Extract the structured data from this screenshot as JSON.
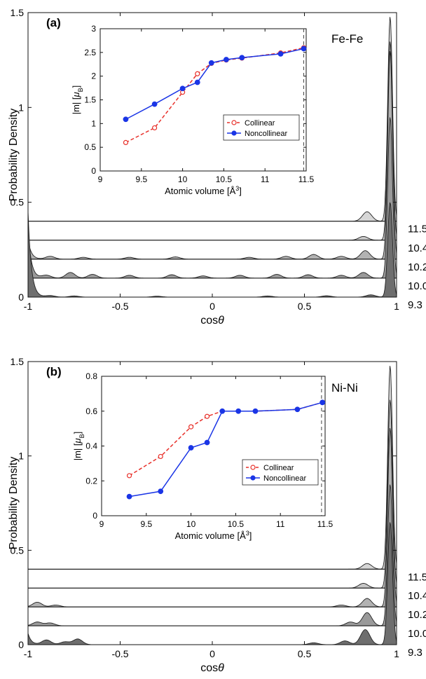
{
  "chart_data": [
    {
      "type": "area",
      "panel_label": "(a)",
      "annotation": "Fe-Fe",
      "xlabel": "cos",
      "xlabel_symbol": "θ",
      "ylabel": "Probability Density",
      "xlim": [
        -1,
        1
      ],
      "ylim": [
        0,
        1.5
      ],
      "xticks": [
        "-1",
        "-0.5",
        "0",
        "0.5",
        "1"
      ],
      "yticks": [
        "0",
        "0.5",
        "1",
        "1.5"
      ],
      "series": [
        {
          "name": "9.3",
          "offset": 0.0,
          "fill": "#6e6e6e",
          "left_peak": 0.45,
          "right_peak": 0.5,
          "bumps": [
            [
              -0.88,
              0.008
            ],
            [
              -0.75,
              0.006
            ],
            [
              -0.3,
              0.005
            ],
            [
              0.3,
              0.006
            ],
            [
              0.62,
              0.007
            ],
            [
              0.86,
              0.012
            ]
          ]
        },
        {
          "name": "10.0",
          "offset": 0.1,
          "fill": "#9a9a9a",
          "left_peak": 0.25,
          "right_peak": 0.85,
          "bumps": [
            [
              -0.9,
              0.015
            ],
            [
              -0.77,
              0.03
            ],
            [
              -0.65,
              0.02
            ],
            [
              -0.45,
              0.015
            ],
            [
              -0.22,
              0.018
            ],
            [
              -0.05,
              0.012
            ],
            [
              0.15,
              0.015
            ],
            [
              0.35,
              0.02
            ],
            [
              0.52,
              0.018
            ],
            [
              0.7,
              0.015
            ],
            [
              0.82,
              0.03
            ]
          ]
        },
        {
          "name": "10.2",
          "offset": 0.2,
          "fill": "#b2b2b2",
          "left_peak": 0.1,
          "right_peak": 1.1,
          "bumps": [
            [
              -0.88,
              0.015
            ],
            [
              -0.7,
              0.01
            ],
            [
              -0.45,
              0.01
            ],
            [
              -0.2,
              0.012
            ],
            [
              0.2,
              0.01
            ],
            [
              0.4,
              0.015
            ],
            [
              0.55,
              0.025
            ],
            [
              0.7,
              0.015
            ],
            [
              0.83,
              0.045
            ]
          ]
        },
        {
          "name": "10.4",
          "offset": 0.3,
          "fill": "#c6c6c6",
          "left_peak": 0.0,
          "right_peak": 1.05,
          "bumps": [
            [
              0.82,
              0.02
            ]
          ]
        },
        {
          "name": "11.5",
          "offset": 0.4,
          "fill": "#d6d6d6",
          "left_peak": 0.0,
          "right_peak": 1.08,
          "bumps": [
            [
              0.84,
              0.05
            ]
          ]
        }
      ],
      "inset": {
        "type": "line",
        "xlabel": "Atomic volume [",
        "xlabel_unit": "Å",
        "xlabel_exp": "3",
        "xlabel_close": "]",
        "ylabel": "|m| [",
        "ylabel_mu": "μ",
        "ylabel_sub": "B",
        "ylabel_close": "]",
        "xlim": [
          9,
          11.5
        ],
        "ylim": [
          0,
          3
        ],
        "xticks": [
          "9",
          "9.5",
          "10",
          "10.5",
          "11",
          "11.5"
        ],
        "yticks": [
          "0",
          "0.5",
          "1",
          "1.5",
          "2",
          "2.5",
          "3"
        ],
        "vline_x": 11.47,
        "legend_placement": "lower-right",
        "series": [
          {
            "name": "Collinear",
            "color": "#e8302a",
            "style": "dashed",
            "marker": "open-circle",
            "x": [
              9.31,
              9.66,
              10.0,
              10.18,
              10.35,
              10.53,
              10.72,
              11.19,
              11.47
            ],
            "y": [
              0.6,
              0.91,
              1.66,
              2.05,
              2.27,
              2.34,
              2.38,
              2.49,
              2.6
            ]
          },
          {
            "name": "Noncollinear",
            "color": "#1a35e6",
            "style": "solid",
            "marker": "filled-circle",
            "x": [
              9.31,
              9.66,
              10.0,
              10.18,
              10.35,
              10.53,
              10.72,
              11.19,
              11.47
            ],
            "y": [
              1.09,
              1.41,
              1.74,
              1.87,
              2.28,
              2.35,
              2.39,
              2.47,
              2.58
            ]
          }
        ]
      }
    },
    {
      "type": "area",
      "panel_label": "(b)",
      "annotation": "Ni-Ni",
      "xlabel": "cos",
      "xlabel_symbol": "θ",
      "ylabel": "Probability Density",
      "xlim": [
        -1,
        1
      ],
      "ylim": [
        0,
        1.5
      ],
      "xticks": [
        "-1",
        "-0.5",
        "0",
        "0.5",
        "1"
      ],
      "yticks": [
        "0",
        "0.5",
        "1",
        "1.5"
      ],
      "series": [
        {
          "name": "9.3",
          "offset": 0.0,
          "fill": "#6e6e6e",
          "left_peak": 0.06,
          "right_peak": 0.65,
          "bumps": [
            [
              -0.9,
              0.025
            ],
            [
              -0.8,
              0.015
            ],
            [
              -0.73,
              0.03
            ],
            [
              0.55,
              0.01
            ],
            [
              0.72,
              0.02
            ],
            [
              0.83,
              0.08
            ]
          ]
        },
        {
          "name": "10.0",
          "offset": 0.1,
          "fill": "#9a9a9a",
          "left_peak": 0.0,
          "right_peak": 0.75,
          "bumps": [
            [
              -0.95,
              0.02
            ],
            [
              -0.88,
              0.015
            ],
            [
              0.75,
              0.02
            ],
            [
              0.84,
              0.07
            ]
          ]
        },
        {
          "name": "10.2",
          "offset": 0.2,
          "fill": "#b2b2b2",
          "left_peak": 0.0,
          "right_peak": 0.95,
          "bumps": [
            [
              -0.95,
              0.025
            ],
            [
              -0.85,
              0.01
            ],
            [
              0.7,
              0.01
            ],
            [
              0.84,
              0.045
            ]
          ]
        },
        {
          "name": "10.4",
          "offset": 0.3,
          "fill": "#c6c6c6",
          "left_peak": 0.0,
          "right_peak": 1.0,
          "bumps": [
            [
              0.82,
              0.025
            ]
          ]
        },
        {
          "name": "11.5",
          "offset": 0.4,
          "fill": "#d6d6d6",
          "left_peak": 0.0,
          "right_peak": 1.08,
          "bumps": [
            [
              0.84,
              0.03
            ]
          ]
        }
      ],
      "inset": {
        "type": "line",
        "xlabel": "Atomic volume [",
        "xlabel_unit": "Å",
        "xlabel_exp": "3",
        "xlabel_close": "]",
        "ylabel": "|m| [",
        "ylabel_mu": "μ",
        "ylabel_sub": "B",
        "ylabel_close": "]",
        "xlim": [
          9,
          11.5
        ],
        "ylim": [
          0,
          0.8
        ],
        "xticks": [
          "9",
          "9.5",
          "10",
          "10.5",
          "11",
          "11.5"
        ],
        "yticks": [
          "0",
          "0.2",
          "0.4",
          "0.6",
          "0.8"
        ],
        "vline_x": 11.46,
        "legend_placement": "lower-right",
        "series": [
          {
            "name": "Collinear",
            "color": "#e8302a",
            "style": "dashed",
            "marker": "open-circle",
            "x": [
              9.31,
              9.66,
              10.0,
              10.18,
              10.35,
              10.53,
              10.72,
              11.19,
              11.47
            ],
            "y": [
              0.23,
              0.34,
              0.51,
              0.57,
              0.6,
              0.6,
              0.6,
              0.61,
              0.65
            ]
          },
          {
            "name": "Noncollinear",
            "color": "#1a35e6",
            "style": "solid",
            "marker": "filled-circle",
            "x": [
              9.31,
              9.66,
              10.0,
              10.18,
              10.35,
              10.53,
              10.72,
              11.19,
              11.47
            ],
            "y": [
              0.11,
              0.14,
              0.39,
              0.42,
              0.6,
              0.6,
              0.6,
              0.61,
              0.65
            ]
          }
        ]
      }
    }
  ]
}
